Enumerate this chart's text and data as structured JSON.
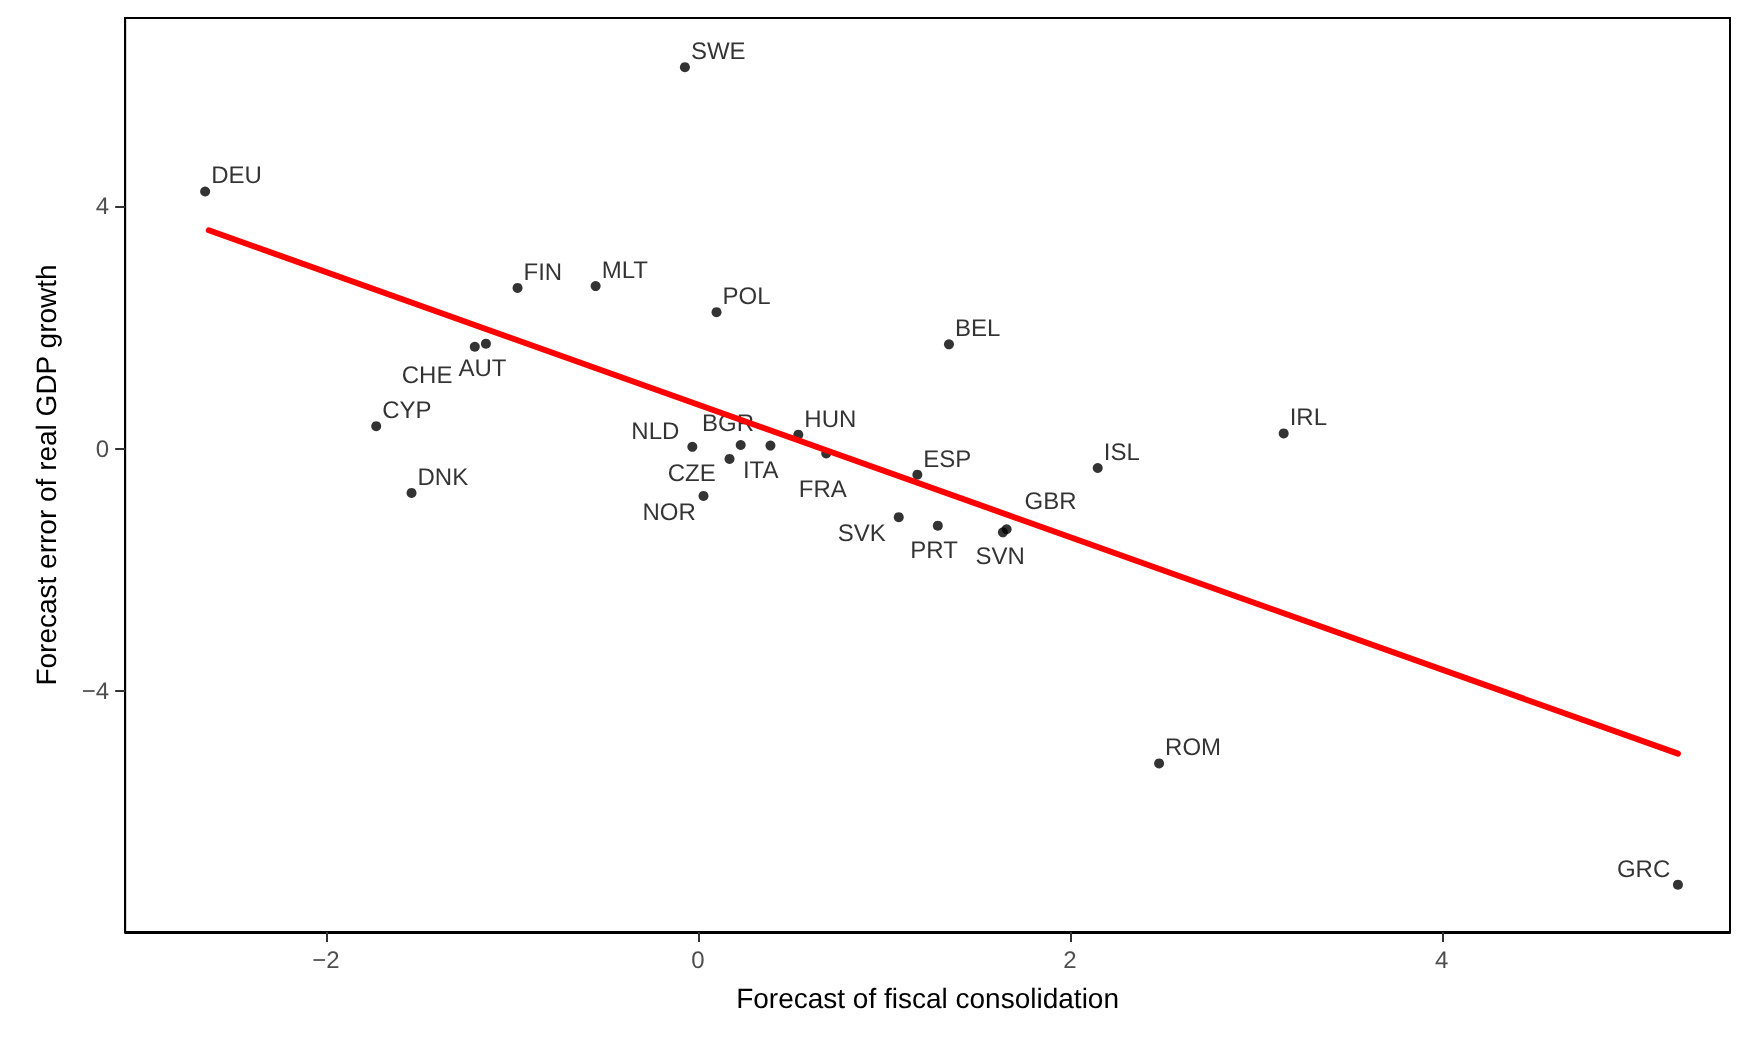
{
  "chart_data": {
    "type": "scatter",
    "xlabel": "Forecast of fiscal consolidation",
    "ylabel": "Forecast error of real GDP growth",
    "xlim": [
      -3.08,
      5.55
    ],
    "ylim": [
      -7.97,
      7.1
    ],
    "xticks": [
      -2,
      0,
      2,
      4
    ],
    "yticks": [
      -4,
      0,
      4
    ],
    "grid": false,
    "marker": "circle",
    "series": [
      {
        "type": "scatter",
        "color": "#000000",
        "x": [
          -0.07,
          -2.65,
          -0.97,
          -0.55,
          -1.14,
          -1.2,
          0.1,
          1.35,
          -1.73,
          -1.54,
          -0.03,
          0.23,
          0.39,
          0.54,
          0.69,
          0.17,
          0.03,
          1.08,
          1.29,
          1.64,
          1.66,
          1.18,
          2.15,
          3.15,
          2.48,
          5.27
        ],
        "values": [
          6.29,
          4.24,
          2.65,
          2.68,
          1.73,
          1.68,
          2.25,
          1.72,
          0.37,
          -0.73,
          0.03,
          0.06,
          0.05,
          0.23,
          -0.08,
          -0.17,
          -0.78,
          -1.13,
          -1.27,
          -1.38,
          -1.33,
          -0.43,
          -0.32,
          0.25,
          -5.19,
          -7.19
        ],
        "value_labels": [
          "SWE",
          "DEU",
          "FIN",
          "MLT",
          "AUT",
          "CHE",
          "POL",
          "BEL",
          "CYP",
          "DNK",
          "NLD",
          "CZE",
          "ITA",
          "HUN",
          "FRA",
          "BGR",
          "NOR",
          "SVK",
          "PRT",
          "SVN",
          "GBR",
          "ESP",
          "ISL",
          "IRL",
          "ROM",
          "GRC"
        ]
      },
      {
        "type": "line",
        "color": "#ff0000",
        "line_style": "solid",
        "marker": "none",
        "x": [
          -2.63,
          5.27
        ],
        "values": [
          3.6,
          -5.03
        ]
      }
    ]
  }
}
